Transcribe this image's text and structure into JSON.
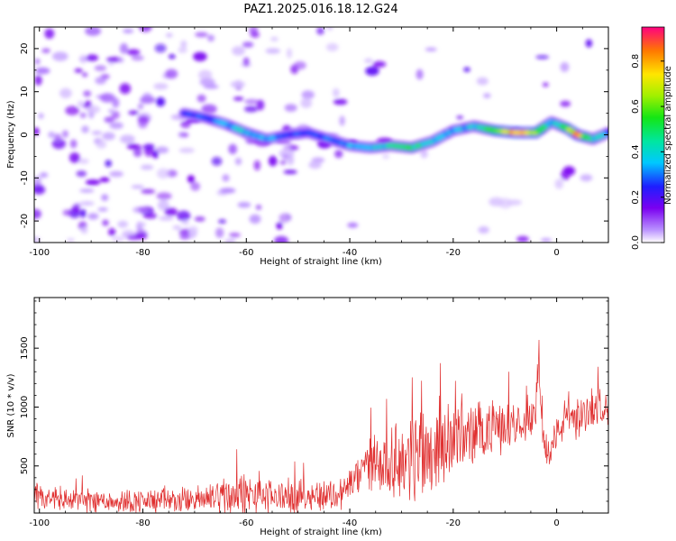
{
  "title": "PAZ1.2025.016.18.12.G24",
  "colors": {
    "snr_line": "#e03030",
    "axis": "#000000",
    "background": "#ffffff"
  },
  "chart_data": [
    {
      "type": "heatmap",
      "xlabel": "Height of straight line (km)",
      "ylabel": "Frequency (Hz)",
      "xlim": [
        -101,
        10
      ],
      "ylim": [
        -25,
        25
      ],
      "xticks": [
        -100,
        -80,
        -60,
        -40,
        -20,
        0
      ],
      "yticks": [
        -20,
        -10,
        0,
        10,
        20
      ],
      "colorbar": {
        "label": "Normalized spectral amplitude",
        "lim": [
          0,
          0.95
        ],
        "ticks": [
          0.0,
          0.2,
          0.4,
          0.6,
          0.8
        ],
        "tick_labels": [
          "0.0",
          "0.2",
          "0.4",
          "0.6",
          "0.8"
        ],
        "colormap": "rainbow-white"
      },
      "ridge": {
        "description_of_values": "frequency (Hz) of main spectral ridge vs height (km), with peak normalized amplitude",
        "points": [
          {
            "x": -72,
            "y": 5,
            "a": 0.25
          },
          {
            "x": -68,
            "y": 4,
            "a": 0.3
          },
          {
            "x": -64,
            "y": 2.5,
            "a": 0.35
          },
          {
            "x": -60,
            "y": 0.5,
            "a": 0.4
          },
          {
            "x": -56,
            "y": -1,
            "a": 0.35
          },
          {
            "x": -52,
            "y": 0,
            "a": 0.3
          },
          {
            "x": -48,
            "y": 0.5,
            "a": 0.3
          },
          {
            "x": -44,
            "y": -1,
            "a": 0.3
          },
          {
            "x": -40,
            "y": -2.5,
            "a": 0.35
          },
          {
            "x": -36,
            "y": -3,
            "a": 0.4
          },
          {
            "x": -32,
            "y": -2.5,
            "a": 0.45
          },
          {
            "x": -28,
            "y": -3,
            "a": 0.55
          },
          {
            "x": -24,
            "y": -1.5,
            "a": 0.4
          },
          {
            "x": -20,
            "y": 1,
            "a": 0.35
          },
          {
            "x": -16,
            "y": 2,
            "a": 0.4
          },
          {
            "x": -12,
            "y": 1,
            "a": 0.65
          },
          {
            "x": -8,
            "y": 0.5,
            "a": 0.9
          },
          {
            "x": -4,
            "y": 0.5,
            "a": 0.75
          },
          {
            "x": -1,
            "y": 3,
            "a": 0.35
          },
          {
            "x": 2,
            "y": 1.5,
            "a": 0.6
          },
          {
            "x": 4,
            "y": 0,
            "a": 0.85
          },
          {
            "x": 7,
            "y": -1,
            "a": 0.45
          },
          {
            "x": 10,
            "y": 0.5,
            "a": 0.35
          }
        ]
      }
    },
    {
      "type": "line",
      "xlabel": "Height of straight line (km)",
      "ylabel": "SNR (10 * v/v)",
      "xlim": [
        -101,
        10
      ],
      "ylim": [
        100,
        1930
      ],
      "xticks": [
        -100,
        -80,
        -60,
        -40,
        -20,
        0
      ],
      "yticks": [
        500,
        1000,
        1500
      ],
      "series": [
        {
          "description_of_values": "approximate envelope of SNR (mean level and fluctuation half-range) vs height (km)",
          "x": [
            -101,
            -90,
            -80,
            -70,
            -62,
            -58,
            -50,
            -42,
            -38,
            -36,
            -32,
            -28,
            -26,
            -24,
            -22,
            -20,
            -16,
            -12,
            -8,
            -6,
            -4,
            -3.5,
            -3,
            -2,
            0,
            2,
            4,
            6,
            8,
            10
          ],
          "mean": [
            220,
            210,
            200,
            210,
            260,
            240,
            240,
            260,
            420,
            560,
            520,
            560,
            650,
            620,
            700,
            720,
            760,
            820,
            880,
            920,
            950,
            1400,
            850,
            540,
            780,
            920,
            900,
            960,
            1000,
            1040
          ],
          "spread": [
            110,
            110,
            110,
            120,
            220,
            160,
            150,
            150,
            200,
            250,
            300,
            420,
            500,
            420,
            420,
            300,
            300,
            250,
            200,
            200,
            200,
            400,
            250,
            120,
            150,
            200,
            200,
            150,
            180,
            180
          ]
        }
      ]
    }
  ]
}
